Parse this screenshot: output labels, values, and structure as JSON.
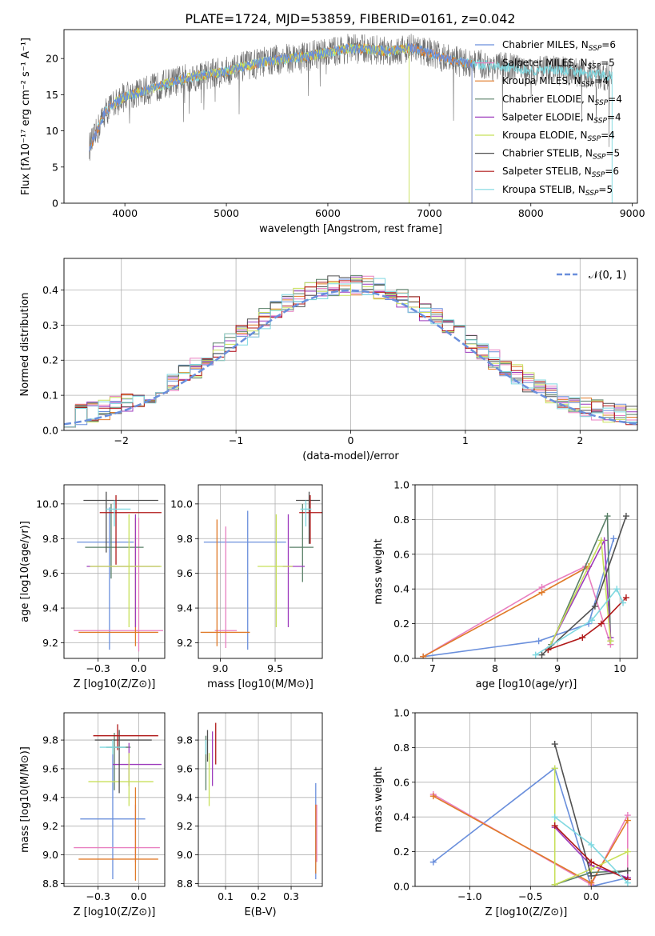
{
  "colors": {
    "Chabrier MILES": "#6a8fdc",
    "Salpeter MILES": "#e87fc0",
    "Kroupa MILES": "#e07a28",
    "Chabrier ELODIE": "#5a8068",
    "Salpeter ELODIE": "#9d3bbd",
    "Kroupa ELODIE": "#c8e05a",
    "Chabrier STELIB": "#505050",
    "Salpeter STELIB": "#b01818",
    "Kroupa STELIB": "#7fd8e0",
    "gaussian": "#6a8fdc"
  },
  "chart_data": [
    {
      "id": "spectrum",
      "type": "line",
      "title": "PLATE=1724, MJD=53859, FIBERID=0161, z=0.042",
      "xlabel": "wavelength [Angstrom, rest frame]",
      "ylabel": "Flux [fλ10⁻¹⁷ erg cm⁻² s⁻¹ A⁻¹]",
      "xlim": [
        3400,
        9050
      ],
      "ylim": [
        0,
        24
      ],
      "xticks": [
        4000,
        5000,
        6000,
        7000,
        8000,
        9000
      ],
      "yticks": [
        0,
        5,
        10,
        15,
        20
      ],
      "legend_position": "top-right",
      "legend": [
        "Chabrier MILES, N_SSP=6",
        "Salpeter MILES, N_SSP=5",
        "Kroupa MILES, N_SSP=4",
        "Chabrier ELODIE, N_SSP=4",
        "Salpeter ELODIE, N_SSP=4",
        "Kroupa ELODIE, N_SSP=4",
        "Chabrier STELIB, N_SSP=5",
        "Salpeter STELIB, N_SSP=6",
        "Kroupa STELIB, N_SSP=5"
      ],
      "continuum": {
        "wavelength": [
          3650,
          3700,
          3800,
          3900,
          4000,
          4200,
          4400,
          4600,
          4800,
          5000,
          5200,
          5400,
          5600,
          5800,
          6000,
          6200,
          6400,
          6600,
          6800,
          7000,
          7200,
          7400,
          7600,
          7800,
          8000,
          8200,
          8400,
          8600,
          8800
        ],
        "flux": [
          7.8,
          9.0,
          12.5,
          13.8,
          14.8,
          15.5,
          16.5,
          17.2,
          17.8,
          18.2,
          19.0,
          19.6,
          20.0,
          20.3,
          20.8,
          21.4,
          21.3,
          21.0,
          21.5,
          20.8,
          19.8,
          19.3,
          19.0,
          18.7,
          18.3,
          18.4,
          18.2,
          17.8,
          17.6
        ]
      },
      "model_ranges": {
        "Chabrier MILES": [
          3650,
          7420
        ],
        "Salpeter MILES": [
          3650,
          7420
        ],
        "Kroupa MILES": [
          3650,
          7420
        ],
        "Chabrier ELODIE": [
          3900,
          6800
        ],
        "Salpeter ELODIE": [
          3900,
          6800
        ],
        "Kroupa ELODIE": [
          3900,
          6800
        ],
        "Chabrier STELIB": [
          3650,
          8800
        ],
        "Salpeter STELIB": [
          3650,
          7420
        ],
        "Kroupa STELIB": [
          3650,
          8800
        ]
      }
    },
    {
      "id": "residuals",
      "type": "histogram",
      "xlabel": "(data-model)/error",
      "ylabel": "Normed distribution",
      "xlim": [
        -2.5,
        2.5
      ],
      "ylim": [
        0,
        0.49
      ],
      "xticks": [
        -2,
        -1,
        0,
        1,
        2
      ],
      "yticks": [
        0.0,
        0.1,
        0.2,
        0.3,
        0.4
      ],
      "bin_width": 0.1,
      "reference_label": "𝒩(0, 1)",
      "legend_position": "top-right"
    },
    {
      "id": "age-vs-Z",
      "type": "errorbar",
      "xlabel": "Z [log10(Z/Z⊙)]",
      "ylabel": "age [log10(age/yr)]",
      "xlim": [
        -0.46,
        0.16
      ],
      "ylim": [
        9.11,
        10.11
      ],
      "xticks": [
        -0.25,
        0.0
      ],
      "yticks": [
        9.2,
        9.4,
        9.6,
        9.8,
        10.0
      ],
      "points": [
        {
          "model": "Chabrier MILES",
          "x": -0.18,
          "xerr": [
            0.2,
            0.15
          ],
          "y": 9.78,
          "yerr": [
            0.62,
            0.2
          ]
        },
        {
          "model": "Salpeter MILES",
          "x": 0.0,
          "xerr": [
            0.4,
            0.15
          ],
          "y": 9.27,
          "yerr": [
            0.12,
            0.65
          ]
        },
        {
          "model": "Kroupa MILES",
          "x": -0.02,
          "xerr": [
            0.35,
            0.14
          ],
          "y": 9.26,
          "yerr": [
            0.08,
            0.66
          ]
        },
        {
          "model": "Chabrier ELODIE",
          "x": -0.17,
          "xerr": [
            0.16,
            0.2
          ],
          "y": 9.75,
          "yerr": [
            0.18,
            0.25
          ]
        },
        {
          "model": "Salpeter ELODIE",
          "x": -0.02,
          "xerr": [
            0.3,
            0.15
          ],
          "y": 9.64,
          "yerr": [
            0.35,
            0.3
          ]
        },
        {
          "model": "Kroupa ELODIE",
          "x": -0.06,
          "xerr": [
            0.24,
            0.2
          ],
          "y": 9.64,
          "yerr": [
            0.35,
            0.3
          ]
        },
        {
          "model": "Chabrier STELIB",
          "x": -0.2,
          "xerr": [
            0.14,
            0.32
          ],
          "y": 10.02,
          "yerr": [
            0.3,
            0.05
          ]
        },
        {
          "model": "Salpeter STELIB",
          "x": -0.14,
          "xerr": [
            0.1,
            0.28
          ],
          "y": 9.95,
          "yerr": [
            0.3,
            0.1
          ]
        },
        {
          "model": "Kroupa STELIB",
          "x": -0.15,
          "xerr": [
            0.05,
            0.1
          ],
          "y": 9.97,
          "yerr": [
            0.1,
            0.05
          ]
        }
      ]
    },
    {
      "id": "age-vs-mass",
      "type": "errorbar",
      "xlabel": "mass [log10(M/M⊙)]",
      "ylabel": "",
      "xlim": [
        8.8,
        9.93
      ],
      "ylim": [
        9.11,
        10.11
      ],
      "xticks": [
        9.0,
        9.5
      ],
      "yticks": [
        9.2,
        9.4,
        9.6,
        9.8,
        10.0
      ],
      "points": [
        {
          "model": "Chabrier MILES",
          "x": 9.25,
          "xerr": [
            0.4,
            0.35
          ],
          "y": 9.78,
          "yerr": [
            0.62,
            0.18
          ]
        },
        {
          "model": "Salpeter MILES",
          "x": 9.05,
          "xerr": [
            0.1,
            0.1
          ],
          "y": 9.27,
          "yerr": [
            0.1,
            0.6
          ]
        },
        {
          "model": "Kroupa MILES",
          "x": 8.97,
          "xerr": [
            0.15,
            0.3
          ],
          "y": 9.26,
          "yerr": [
            0.08,
            0.65
          ]
        },
        {
          "model": "Chabrier ELODIE",
          "x": 9.75,
          "xerr": [
            0.12,
            0.1
          ],
          "y": 9.75,
          "yerr": [
            0.2,
            0.25
          ]
        },
        {
          "model": "Salpeter ELODIE",
          "x": 9.62,
          "xerr": [
            0.05,
            0.15
          ],
          "y": 9.64,
          "yerr": [
            0.35,
            0.3
          ]
        },
        {
          "model": "Kroupa ELODIE",
          "x": 9.51,
          "xerr": [
            0.17,
            0.15
          ],
          "y": 9.64,
          "yerr": [
            0.35,
            0.3
          ]
        },
        {
          "model": "Chabrier STELIB",
          "x": 9.81,
          "xerr": [
            0.12,
            0.1
          ],
          "y": 10.02,
          "yerr": [
            0.25,
            0.05
          ]
        },
        {
          "model": "Salpeter STELIB",
          "x": 9.82,
          "xerr": [
            0.1,
            0.12
          ],
          "y": 9.95,
          "yerr": [
            0.18,
            0.1
          ]
        },
        {
          "model": "Kroupa STELIB",
          "x": 9.78,
          "xerr": [
            0.05,
            0.05
          ],
          "y": 9.97,
          "yerr": [
            0.1,
            0.05
          ]
        }
      ]
    },
    {
      "id": "weight-vs-age",
      "type": "line",
      "xlabel": "age [log10(age/yr)]",
      "ylabel": "mass weight",
      "xlim": [
        6.72,
        10.28
      ],
      "ylim": [
        0,
        1
      ],
      "xticks": [
        7,
        8,
        9,
        10
      ],
      "yticks": [
        0.0,
        0.2,
        0.4,
        0.6,
        0.8,
        1.0
      ],
      "series": [
        {
          "model": "Chabrier MILES",
          "x": [
            6.85,
            8.7,
            9.5,
            9.9
          ],
          "y": [
            0.01,
            0.1,
            0.2,
            0.69
          ]
        },
        {
          "model": "Salpeter MILES",
          "x": [
            6.85,
            8.75,
            9.45,
            9.85
          ],
          "y": [
            0.01,
            0.41,
            0.53,
            0.08
          ]
        },
        {
          "model": "Kroupa MILES",
          "x": [
            6.85,
            8.75,
            9.5
          ],
          "y": [
            0.01,
            0.38,
            0.53
          ]
        },
        {
          "model": "Chabrier ELODIE",
          "x": [
            8.9,
            9.8,
            9.85
          ],
          "y": [
            0.08,
            0.82,
            0.1
          ]
        },
        {
          "model": "Salpeter ELODIE",
          "x": [
            8.85,
            9.75,
            9.85
          ],
          "y": [
            0.05,
            0.68,
            0.12
          ]
        },
        {
          "model": "Kroupa ELODIE",
          "x": [
            8.85,
            9.7,
            9.85
          ],
          "y": [
            0.05,
            0.68,
            0.1
          ]
        },
        {
          "model": "Chabrier STELIB",
          "x": [
            8.75,
            9.6,
            10.1
          ],
          "y": [
            0.02,
            0.3,
            0.82
          ]
        },
        {
          "model": "Salpeter STELIB",
          "x": [
            8.85,
            9.4,
            9.7,
            10.1
          ],
          "y": [
            0.05,
            0.12,
            0.2,
            0.35
          ]
        },
        {
          "model": "Kroupa STELIB",
          "x": [
            8.65,
            9.55,
            9.95,
            10.05
          ],
          "y": [
            0.02,
            0.22,
            0.4,
            0.32
          ]
        }
      ]
    },
    {
      "id": "mass-vs-Z",
      "type": "errorbar",
      "xlabel": "Z [log10(Z/Z⊙)]",
      "ylabel": "mass [log10(M/M⊙)]",
      "xlim": [
        -0.46,
        0.16
      ],
      "ylim": [
        8.78,
        9.99
      ],
      "xticks": [
        -0.25,
        0.0
      ],
      "yticks": [
        8.8,
        9.0,
        9.2,
        9.4,
        9.6,
        9.8
      ],
      "points": [
        {
          "model": "Chabrier MILES",
          "x": -0.16,
          "xerr": [
            0.2,
            0.2
          ],
          "y": 9.25,
          "yerr": [
            0.42,
            0.45
          ]
        },
        {
          "model": "Salpeter MILES",
          "x": -0.02,
          "xerr": [
            0.38,
            0.15
          ],
          "y": 9.05,
          "yerr": [
            0.1,
            0.3
          ]
        },
        {
          "model": "Kroupa MILES",
          "x": -0.02,
          "xerr": [
            0.35,
            0.14
          ],
          "y": 8.97,
          "yerr": [
            0.15,
            0.5
          ]
        },
        {
          "model": "Chabrier ELODIE",
          "x": -0.15,
          "xerr": [
            0.05,
            0.1
          ],
          "y": 9.75,
          "yerr": [
            0.3,
            0.1
          ]
        },
        {
          "model": "Salpeter ELODIE",
          "x": -0.06,
          "xerr": [
            0.1,
            0.2
          ],
          "y": 9.63,
          "yerr": [
            0.15,
            0.15
          ]
        },
        {
          "model": "Kroupa ELODIE",
          "x": -0.06,
          "xerr": [
            0.25,
            0.15
          ],
          "y": 9.51,
          "yerr": [
            0.17,
            0.2
          ]
        },
        {
          "model": "Chabrier STELIB",
          "x": -0.12,
          "xerr": [
            0.15,
            0.2
          ],
          "y": 9.8,
          "yerr": [
            0.37,
            0.07
          ]
        },
        {
          "model": "Salpeter STELIB",
          "x": -0.13,
          "xerr": [
            0.15,
            0.25
          ],
          "y": 9.83,
          "yerr": [
            0.1,
            0.08
          ]
        },
        {
          "model": "Kroupa STELIB",
          "x": -0.16,
          "xerr": [
            0.08,
            0.08
          ],
          "y": 9.75,
          "yerr": [
            0.05,
            0.05
          ]
        }
      ]
    },
    {
      "id": "mass-vs-ebv",
      "type": "errorbar",
      "xlabel": "E(B-V)",
      "ylabel": "",
      "xlim": [
        0.017,
        0.395
      ],
      "ylim": [
        8.78,
        9.99
      ],
      "xticks": [
        0.1,
        0.2,
        0.3
      ],
      "yticks": [
        8.8,
        9.0,
        9.2,
        9.4,
        9.6,
        9.8
      ],
      "points": [
        {
          "model": "Chabrier MILES",
          "x": 0.375,
          "xerr": [
            0.0,
            0.0
          ],
          "y": 9.25,
          "yerr": [
            0.42,
            0.25
          ]
        },
        {
          "model": "Salpeter MILES",
          "x": 0.378,
          "xerr": [
            0.0,
            0.0
          ],
          "y": 9.05,
          "yerr": [
            0.1,
            0.3
          ]
        },
        {
          "model": "Kroupa MILES",
          "x": 0.375,
          "xerr": [
            0.0,
            0.0
          ],
          "y": 8.97,
          "yerr": [
            0.1,
            0.38
          ]
        },
        {
          "model": "Chabrier ELODIE",
          "x": 0.04,
          "xerr": [
            0.0,
            0.0
          ],
          "y": 9.75,
          "yerr": [
            0.3,
            0.08
          ]
        },
        {
          "model": "Salpeter ELODIE",
          "x": 0.06,
          "xerr": [
            0.0,
            0.0
          ],
          "y": 9.63,
          "yerr": [
            0.15,
            0.23
          ]
        },
        {
          "model": "Kroupa ELODIE",
          "x": 0.05,
          "xerr": [
            0.0,
            0.0
          ],
          "y": 9.51,
          "yerr": [
            0.17,
            0.2
          ]
        },
        {
          "model": "Chabrier STELIB",
          "x": 0.045,
          "xerr": [
            0.0,
            0.0
          ],
          "y": 9.8,
          "yerr": [
            0.15,
            0.07
          ]
        },
        {
          "model": "Salpeter STELIB",
          "x": 0.07,
          "xerr": [
            0.0,
            0.0
          ],
          "y": 9.83,
          "yerr": [
            0.2,
            0.09
          ]
        },
        {
          "model": "Kroupa STELIB",
          "x": 0.04,
          "xerr": [
            0.0,
            0.0
          ],
          "y": 9.75,
          "yerr": [
            0.05,
            0.05
          ]
        }
      ]
    },
    {
      "id": "weight-vs-Z",
      "type": "line",
      "xlabel": "Z [log10(Z/Z⊙)]",
      "ylabel": "mass weight",
      "xlim": [
        -1.45,
        0.38
      ],
      "ylim": [
        0,
        1
      ],
      "xticks": [
        -1.0,
        -0.5,
        0.0
      ],
      "yticks": [
        0.0,
        0.2,
        0.4,
        0.6,
        0.8,
        1.0
      ],
      "series": [
        {
          "model": "Chabrier MILES",
          "x": [
            -1.3,
            -0.3,
            0.0,
            0.3
          ],
          "y": [
            0.14,
            0.68,
            0.0,
            0.05
          ]
        },
        {
          "model": "Salpeter MILES",
          "x": [
            -1.3,
            0.0,
            0.3,
            0.3
          ],
          "y": [
            0.53,
            0.01,
            0.41,
            0.05
          ]
        },
        {
          "model": "Kroupa MILES",
          "x": [
            -1.3,
            0.0,
            0.3
          ],
          "y": [
            0.52,
            0.02,
            0.38
          ]
        },
        {
          "model": "Chabrier ELODIE",
          "x": [
            -0.3,
            0.0,
            0.3
          ],
          "y": [
            0.01,
            0.08,
            0.09
          ]
        },
        {
          "model": "Salpeter ELODIE",
          "x": [
            -0.3,
            0.0,
            0.3
          ],
          "y": [
            0.34,
            0.12,
            0.05
          ]
        },
        {
          "model": "Kroupa ELODIE",
          "x": [
            -0.3,
            -0.3,
            0.0,
            0.3
          ],
          "y": [
            0.68,
            0.01,
            0.1,
            0.2
          ]
        },
        {
          "model": "Chabrier STELIB",
          "x": [
            -0.3,
            0.0,
            0.3
          ],
          "y": [
            0.82,
            0.06,
            0.09
          ]
        },
        {
          "model": "Salpeter STELIB",
          "x": [
            -0.3,
            0.0,
            0.3
          ],
          "y": [
            0.35,
            0.14,
            0.04
          ]
        },
        {
          "model": "Kroupa STELIB",
          "x": [
            -0.3,
            0.0,
            0.3
          ],
          "y": [
            0.4,
            0.24,
            0.02
          ]
        }
      ]
    }
  ]
}
